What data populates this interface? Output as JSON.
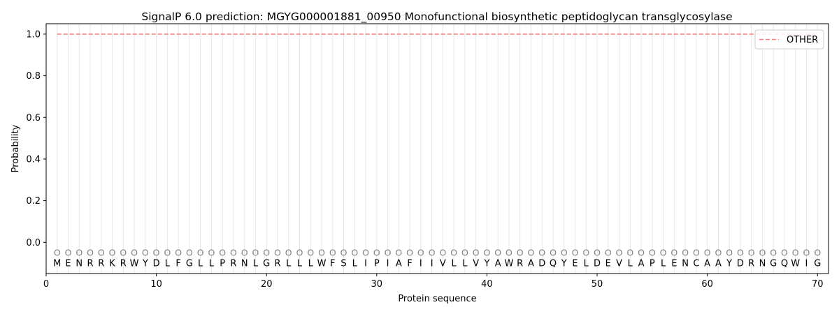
{
  "chart_data": {
    "type": "line",
    "title": "SignalP 6.0 prediction: MGYG000001881_00950 Monofunctional biosynthetic peptidoglycan transglycosylase",
    "xlabel": "Protein sequence",
    "ylabel": "Probability",
    "xlim": [
      0,
      71
    ],
    "ylim": [
      -0.15,
      1.05
    ],
    "xticks": [
      0,
      10,
      20,
      30,
      40,
      50,
      60,
      70
    ],
    "yticks": [
      0.0,
      0.2,
      0.4,
      0.6,
      0.8,
      1.0
    ],
    "xtick_labels": [
      "0",
      "10",
      "20",
      "30",
      "40",
      "50",
      "60",
      "70"
    ],
    "ytick_labels": [
      "0.0",
      "0.2",
      "0.4",
      "0.6",
      "0.8",
      "1.0"
    ],
    "grid": "vertical lines at each residue",
    "legend_position": "top-right",
    "series": [
      {
        "name": "OTHER",
        "color": "#f08080",
        "style": "dashed",
        "x_start": 1,
        "x_end": 70,
        "value": 1.0
      }
    ],
    "sequence": [
      "M",
      "E",
      "N",
      "R",
      "R",
      "K",
      "R",
      "W",
      "Y",
      "D",
      "L",
      "F",
      "G",
      "L",
      "L",
      "P",
      "R",
      "N",
      "L",
      "G",
      "R",
      "L",
      "L",
      "L",
      "W",
      "F",
      "S",
      "L",
      "I",
      "P",
      "I",
      "A",
      "F",
      "I",
      "I",
      "V",
      "L",
      "L",
      "V",
      "Y",
      "A",
      "W",
      "R",
      "A",
      "D",
      "Q",
      "Y",
      "E",
      "L",
      "D",
      "E",
      "V",
      "L",
      "A",
      "P",
      "L",
      "E",
      "N",
      "C",
      "A",
      "A",
      "Y",
      "D",
      "R",
      "N",
      "G",
      "Q",
      "W",
      "I",
      "G"
    ],
    "predicted_label": "O",
    "marker_y": -0.05
  }
}
